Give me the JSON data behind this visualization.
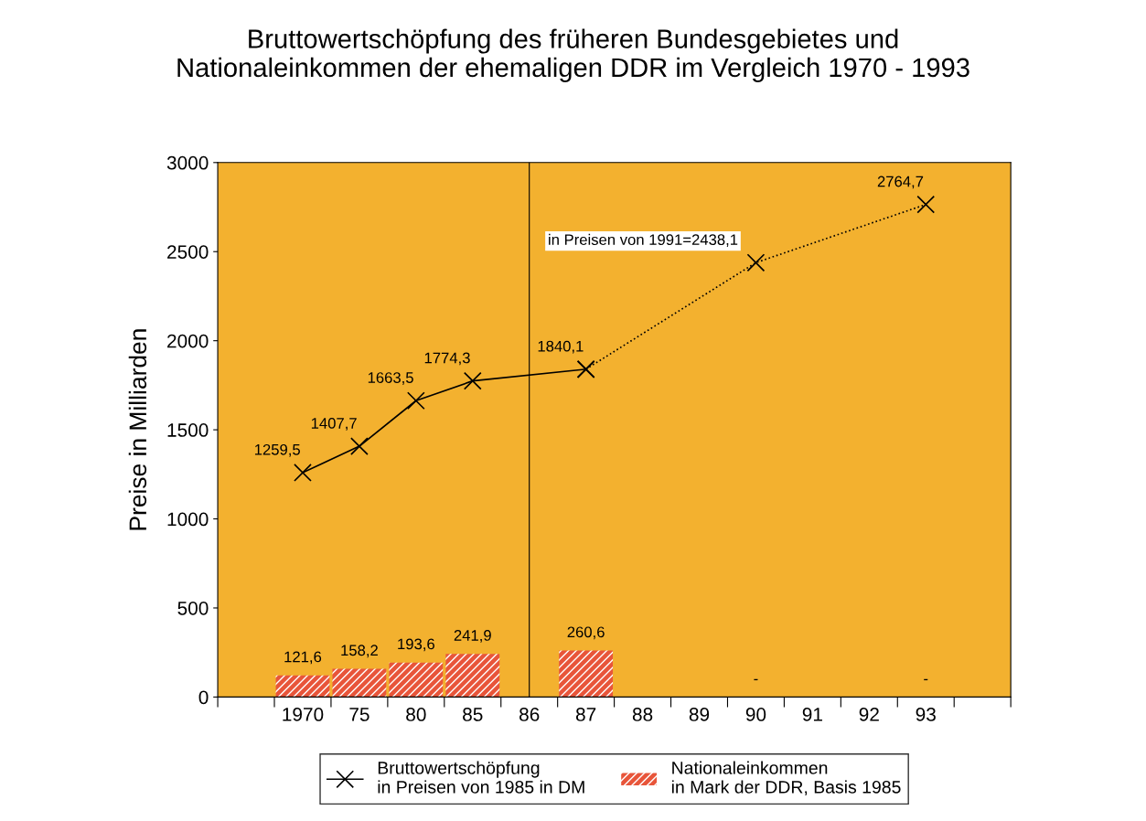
{
  "chart_data": {
    "type": "bar",
    "title": "Bruttowertschöpfung des früheren Bundesgebietes und\nNationaleinkommen der ehemaligen DDR im Vergleich 1970 - 1993",
    "ylabel": "Preise in Milliarden",
    "categories": [
      null,
      "1970",
      "75",
      "80",
      "85",
      "86",
      "87",
      "88",
      "89",
      "90",
      "91",
      "92",
      "93",
      null
    ],
    "series": [
      {
        "name": "Bruttowertschöpfung\nin Preisen von 1985 in DM",
        "type": "line",
        "color": "#000000",
        "marker": "cross",
        "line_style": "solid",
        "values": [
          null,
          1259.5,
          1407.7,
          1663.5,
          1774.3,
          null,
          1840.1,
          null,
          null,
          null,
          null,
          null,
          null,
          null
        ],
        "value_labels": [
          null,
          "1259,5",
          "1407,7",
          "1663,5",
          "1774,3",
          null,
          "1840,1",
          null,
          null,
          null,
          null,
          null,
          null,
          null
        ]
      },
      {
        "type": "line",
        "color": "#000000",
        "marker": "cross",
        "line_style": "dotted",
        "values": [
          null,
          null,
          null,
          null,
          null,
          null,
          1840.1,
          null,
          null,
          2438.1,
          null,
          null,
          2764.7,
          null
        ],
        "value_labels": [
          null,
          null,
          null,
          null,
          null,
          null,
          null,
          null,
          null,
          "in Preisen von 1991=2438,1",
          null,
          null,
          "2764,7",
          null
        ]
      },
      {
        "name": "Nationaleinkommen\nin Mark der DDR, Basis 1985",
        "color": "#e8553a",
        "values": [
          null,
          121.6,
          158.2,
          193.6,
          241.9,
          null,
          260.6,
          null,
          null,
          0,
          null,
          null,
          0,
          null
        ],
        "value_labels": [
          null,
          "121,6",
          "158,2",
          "193,6",
          "241,9",
          null,
          "260,6",
          null,
          null,
          "-",
          null,
          null,
          "-",
          null
        ]
      }
    ],
    "ylim": [
      0,
      3000
    ],
    "yticks": [
      0,
      500,
      1000,
      1500,
      2000,
      2500,
      3000
    ],
    "grid": false,
    "legend": "bottom",
    "ref_lines": [
      {
        "axis": "x",
        "value": "86",
        "color": "#000000"
      }
    ]
  }
}
